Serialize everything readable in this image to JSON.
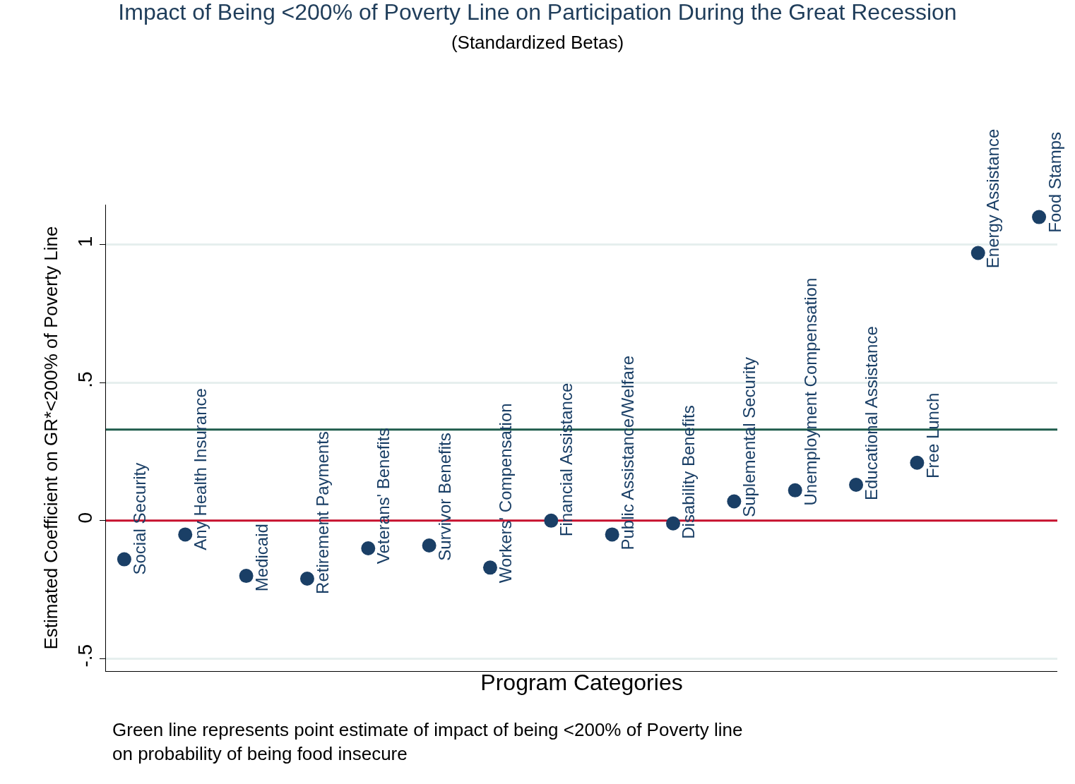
{
  "chart_data": {
    "type": "scatter",
    "title": "Impact of Being <200% of Poverty Line on Participation During the Great Recession",
    "subtitle": "(Standardized Betas)",
    "xlabel": "Program Categories",
    "ylabel": "Estimated Coefficient on GR*<200% of Poverty Line",
    "categories": [
      "Social Security",
      "Any Health Insurance",
      "Medicaid",
      "Retirement Payments",
      "Veterans' Benefits",
      "Survivor Benefits",
      "Workers' Compensation",
      "Financial Assistance",
      "Public Assistance/Welfare",
      "Disability Benefits",
      "Suplemental Security",
      "Unemployment Compensation",
      "Educational Assistance",
      "Free Lunch",
      "Energy Assistance",
      "Food Stamps"
    ],
    "series": [
      {
        "color": "#1a3f66",
        "values": [
          -0.14,
          -0.05,
          -0.2,
          -0.21,
          -0.1,
          -0.09,
          -0.17,
          0.0,
          -0.05,
          -0.01,
          0.07,
          0.11,
          0.13,
          0.21,
          0.97,
          1.1
        ]
      }
    ],
    "marker": "circle",
    "ylim": [
      -0.545,
      1.145
    ],
    "yticks": [
      {
        "value": -0.5,
        "label": "-.5"
      },
      0,
      {
        "value": 0.5,
        "label": ".5"
      },
      1
    ],
    "ref_lines": [
      {
        "axis": "y",
        "value": 0.33,
        "color": "#1f5c4c"
      },
      {
        "axis": "y",
        "value": 0,
        "color": "#c8102e"
      }
    ],
    "annotations": [
      "Green line represents point estimate of impact of being <200% of Poverty line\non probability of being food insecure"
    ],
    "grid": "y",
    "tick_labels": "y"
  }
}
